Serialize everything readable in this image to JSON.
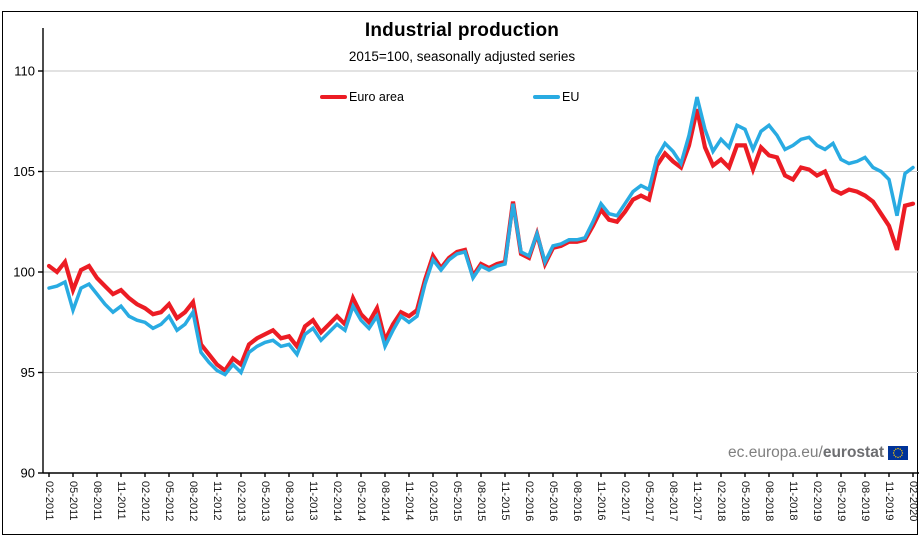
{
  "header": {
    "title": "Industrial production",
    "subtitle": "2015=100, seasonally adjusted series"
  },
  "legend": [
    {
      "label": "Euro area",
      "color": "#ec1c24"
    },
    {
      "label": "EU",
      "color": "#29abe2"
    }
  ],
  "footer": {
    "site_prefix": "ec.europa.eu/",
    "site_bold": "eurostat"
  },
  "chart_data": {
    "type": "line",
    "title": "Industrial production",
    "subtitle": "2015=100, seasonally adjusted series",
    "x_start": "02-2011",
    "x_end": "02-2020",
    "x_frequency": "monthly",
    "x_tick_labels": [
      "02-2011",
      "05-2011",
      "08-2011",
      "11-2011",
      "02-2012",
      "05-2012",
      "08-2012",
      "11-2012",
      "02-2013",
      "05-2013",
      "08-2013",
      "11-2013",
      "02-2014",
      "05-2014",
      "08-2014",
      "11-2014",
      "02-2015",
      "05-2015",
      "08-2015",
      "11-2015",
      "02-2016",
      "05-2016",
      "08-2016",
      "11-2016",
      "02-2017",
      "05-2017",
      "08-2017",
      "11-2017",
      "02-2018",
      "05-2018",
      "08-2018",
      "11-2018",
      "02-2019",
      "05-2019",
      "08-2019",
      "11-2019",
      "02-2020"
    ],
    "ylim": [
      90,
      110
    ],
    "yticks": [
      90,
      95,
      100,
      105,
      110
    ],
    "grid": true,
    "legend_position": "top",
    "series": [
      {
        "name": "Euro area",
        "color": "#ec1c24",
        "values": [
          100.3,
          100.0,
          100.5,
          99.1,
          100.1,
          100.3,
          99.7,
          99.3,
          98.9,
          99.1,
          98.7,
          98.4,
          98.2,
          97.9,
          98.0,
          98.4,
          97.7,
          98.0,
          98.5,
          96.4,
          95.9,
          95.4,
          95.1,
          95.7,
          95.4,
          96.4,
          96.7,
          96.9,
          97.1,
          96.7,
          96.8,
          96.3,
          97.3,
          97.6,
          97.0,
          97.4,
          97.8,
          97.4,
          98.7,
          97.9,
          97.5,
          98.2,
          96.6,
          97.4,
          98.0,
          97.8,
          98.1,
          99.6,
          100.8,
          100.2,
          100.7,
          101.0,
          101.1,
          99.8,
          100.4,
          100.2,
          100.4,
          100.5,
          103.5,
          100.9,
          100.7,
          101.9,
          100.4,
          101.2,
          101.3,
          101.5,
          101.5,
          101.6,
          102.3,
          103.1,
          102.6,
          102.5,
          103.0,
          103.6,
          103.8,
          103.6,
          105.3,
          105.9,
          105.5,
          105.2,
          106.3,
          108.1,
          106.2,
          105.3,
          105.6,
          105.2,
          106.3,
          106.3,
          105.1,
          106.2,
          105.8,
          105.7,
          104.8,
          104.6,
          105.2,
          105.1,
          104.8,
          105.0,
          104.1,
          103.9,
          104.1,
          104.0,
          103.8,
          103.5,
          102.9,
          102.3,
          101.1,
          103.3,
          103.4
        ]
      },
      {
        "name": "EU",
        "color": "#29abe2",
        "values": [
          99.2,
          99.3,
          99.5,
          98.1,
          99.2,
          99.4,
          98.9,
          98.4,
          98.0,
          98.3,
          97.8,
          97.6,
          97.5,
          97.2,
          97.4,
          97.8,
          97.1,
          97.4,
          98.0,
          96.0,
          95.5,
          95.1,
          94.9,
          95.4,
          95.0,
          96.0,
          96.3,
          96.5,
          96.6,
          96.3,
          96.4,
          95.9,
          96.9,
          97.2,
          96.6,
          97.0,
          97.4,
          97.1,
          98.3,
          97.6,
          97.2,
          97.8,
          96.3,
          97.1,
          97.8,
          97.5,
          97.8,
          99.4,
          100.6,
          100.1,
          100.6,
          100.9,
          101.0,
          99.7,
          100.3,
          100.1,
          100.3,
          100.4,
          103.4,
          101.0,
          100.8,
          101.9,
          100.5,
          101.3,
          101.4,
          101.6,
          101.6,
          101.7,
          102.5,
          103.4,
          102.9,
          102.8,
          103.4,
          104.0,
          104.3,
          104.1,
          105.7,
          106.4,
          106.0,
          105.4,
          106.8,
          108.7,
          107.1,
          106.0,
          106.6,
          106.2,
          107.3,
          107.1,
          106.1,
          107.0,
          107.3,
          106.8,
          106.1,
          106.3,
          106.6,
          106.7,
          106.3,
          106.1,
          106.4,
          105.6,
          105.4,
          105.5,
          105.7,
          105.2,
          105.0,
          104.6,
          102.8,
          104.9,
          105.2
        ]
      }
    ]
  }
}
